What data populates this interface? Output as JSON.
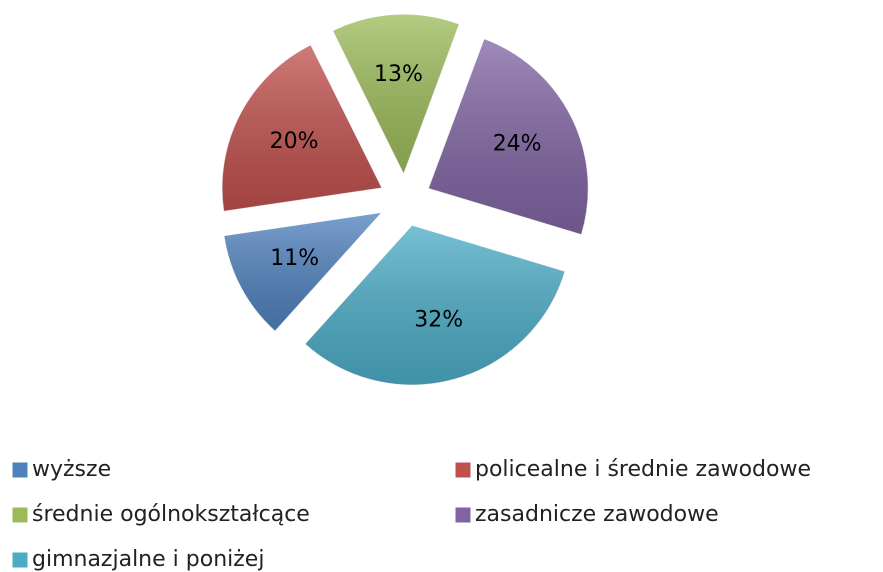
{
  "chart_data": {
    "type": "pie",
    "categories": [
      "wyższe",
      "policealne i średnie zawodowe",
      "średnie ogólnokształcące",
      "zasadnicze zawodowe",
      "gimnazjalne i poniżej"
    ],
    "values": [
      11,
      20,
      13,
      24,
      32
    ],
    "value_labels": [
      "11%",
      "20%",
      "13%",
      "24%",
      "32%"
    ],
    "colors": [
      "#4f81bd",
      "#c0504d",
      "#9bbb59",
      "#8064a2",
      "#4bacc6"
    ]
  }
}
